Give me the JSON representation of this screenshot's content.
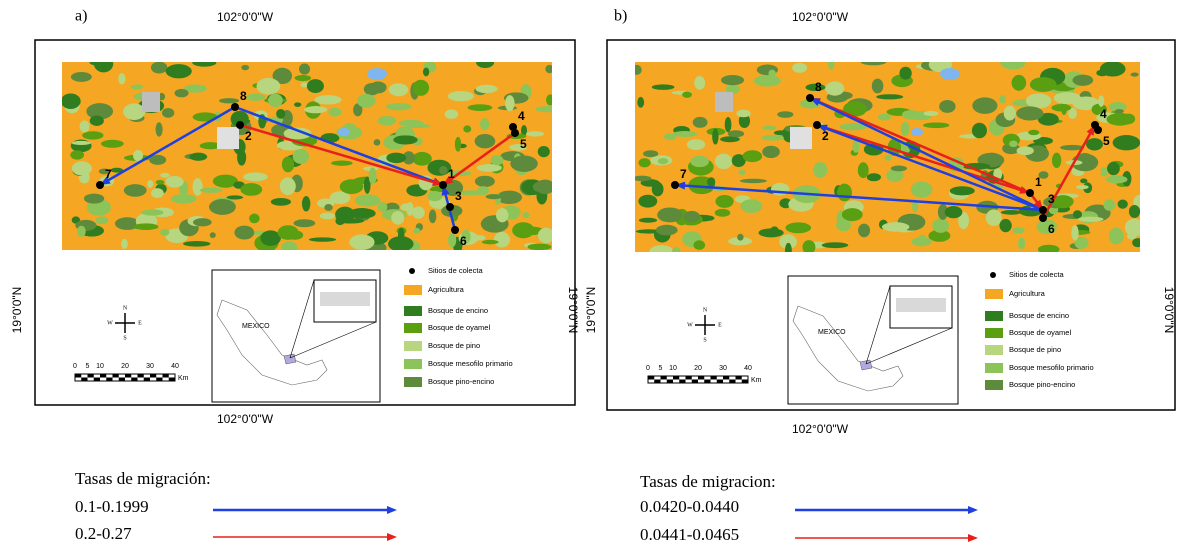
{
  "panels": [
    {
      "label": "a)",
      "lon_top": "102°0'0\"W",
      "lon_bottom": "102°0'0\"W",
      "lat_left": "19°0'0\"N",
      "lat_right": "19°0'0\"N",
      "sites": [
        "1",
        "2",
        "3",
        "4",
        "5",
        "6",
        "7",
        "8"
      ],
      "legend": [
        {
          "label": "Sitios de colecta",
          "color": "#000000"
        },
        {
          "label": "Agricultura",
          "color": "#f5a623"
        },
        {
          "label": "Bosque de encino",
          "color": "#2f7d1f"
        },
        {
          "label": "Bosque de oyamel",
          "color": "#5a9e12"
        },
        {
          "label": "Bosque de pino",
          "color": "#b7d67f"
        },
        {
          "label": "Bosque mesofilo primario",
          "color": "#8cc45a"
        },
        {
          "label": "Bosque pino-encino",
          "color": "#5e8a3c"
        }
      ],
      "compass": [
        "N",
        "W",
        "E",
        "S"
      ],
      "scale_ticks": [
        0,
        5,
        10,
        20,
        30,
        40
      ],
      "scale_unit": "Km",
      "inset_label": "MEXICO",
      "migration": {
        "title": "Tasas de migración:",
        "classes": [
          {
            "label": "0.1-0.1999",
            "color": "#1f3fe0"
          },
          {
            "label": "0.2-0.27",
            "color": "#e8201c"
          }
        ]
      }
    },
    {
      "label": "b)",
      "lon_top": "102°0'0\"W",
      "lon_bottom": "102°0'0\"W",
      "lat_left": "19°0'0\"N",
      "lat_right": "19°0'0\"N",
      "sites": [
        "1",
        "2",
        "3",
        "4",
        "5",
        "6",
        "7",
        "8"
      ],
      "legend": [
        {
          "label": "Sitios de colecta",
          "color": "#000000"
        },
        {
          "label": "Agricultura",
          "color": "#f5a623"
        },
        {
          "label": "Bosque de encino",
          "color": "#2f7d1f"
        },
        {
          "label": "Bosque de oyamel",
          "color": "#5a9e12"
        },
        {
          "label": "Bosque de pino",
          "color": "#b7d67f"
        },
        {
          "label": "Bosque mesofilo primario",
          "color": "#8cc45a"
        },
        {
          "label": "Bosque pino-encino",
          "color": "#5e8a3c"
        }
      ],
      "compass": [
        "N",
        "W",
        "E",
        "S"
      ],
      "scale_ticks": [
        0,
        5,
        10,
        20,
        30,
        40
      ],
      "scale_unit": "Km",
      "inset_label": "MEXICO",
      "migration": {
        "title": "Tasas de migracion:",
        "classes": [
          {
            "label": "0.0420-0.0440",
            "color": "#1f3fe0"
          },
          {
            "label": "0.0441-0.0465",
            "color": "#e8201c"
          }
        ]
      }
    }
  ]
}
